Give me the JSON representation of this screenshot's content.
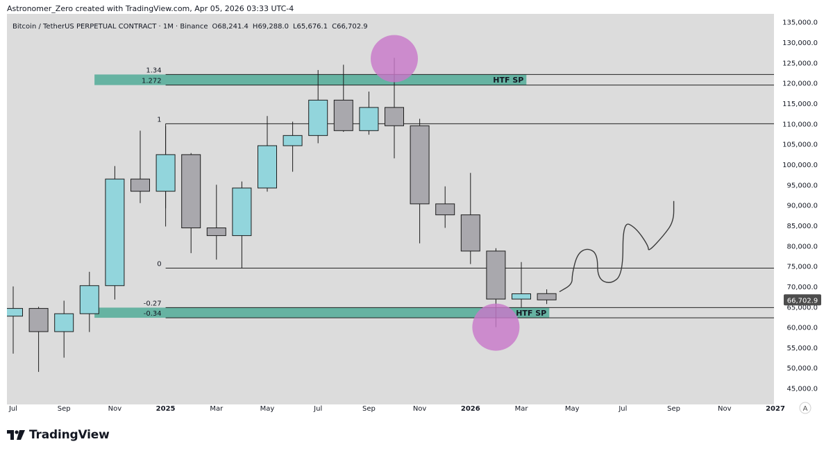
{
  "header": {
    "credit": "Astronomer_Zero created with TradingView.com, Apr 05, 2026 03:33 UTC-4"
  },
  "legend": {
    "symbol": "Bitcoin / TetherUS PERPETUAL CONTRACT · 1M · Binance",
    "o": "O68,241.4",
    "h": "H69,288.0",
    "l": "L65,676.1",
    "c": "C66,702.9"
  },
  "price_label": "66,702.9",
  "autoscale_label": "A",
  "logo_text": "TradingView",
  "colors": {
    "background": "#dcdcdc",
    "bull": "#92d5dc",
    "bear": "#a9a8ad",
    "zone": "#66b3a2",
    "circle": "#c879c9",
    "last_price_bg": "#4d4d4d"
  },
  "chart_data": {
    "type": "candlestick",
    "title": "Bitcoin / TetherUS PERPETUAL CONTRACT · 1M · Binance",
    "ylim": [
      41000,
      137000
    ],
    "y_ticks": [
      45000,
      50000,
      55000,
      60000,
      65000,
      70000,
      75000,
      80000,
      85000,
      90000,
      95000,
      100000,
      105000,
      110000,
      115000,
      120000,
      125000,
      130000,
      135000
    ],
    "y_tick_labels": [
      "45,000.0",
      "50,000.0",
      "55,000.0",
      "60,000.0",
      "65,000.0",
      "70,000.0",
      "75,000.0",
      "80,000.0",
      "85,000.0",
      "90,000.0",
      "95,000.0",
      "100,000.0",
      "105,000.0",
      "110,000.0",
      "115,000.0",
      "120,000.0",
      "125,000.0",
      "130,000.0",
      "135,000.0"
    ],
    "x_labels": [
      {
        "label": "Jul",
        "i": 0,
        "bold": false
      },
      {
        "label": "Sep",
        "i": 2,
        "bold": false
      },
      {
        "label": "Nov",
        "i": 4,
        "bold": false
      },
      {
        "label": "2025",
        "i": 6,
        "bold": true
      },
      {
        "label": "Mar",
        "i": 8,
        "bold": false
      },
      {
        "label": "May",
        "i": 10,
        "bold": false
      },
      {
        "label": "Jul",
        "i": 12,
        "bold": false
      },
      {
        "label": "Sep",
        "i": 14,
        "bold": false
      },
      {
        "label": "Nov",
        "i": 16,
        "bold": false
      },
      {
        "label": "2026",
        "i": 18,
        "bold": true
      },
      {
        "label": "Mar",
        "i": 20,
        "bold": false
      },
      {
        "label": "May",
        "i": 22,
        "bold": false
      },
      {
        "label": "Jul",
        "i": 24,
        "bold": false
      },
      {
        "label": "Sep",
        "i": 26,
        "bold": false
      },
      {
        "label": "Nov",
        "i": 28,
        "bold": false
      },
      {
        "label": "2027",
        "i": 30,
        "bold": true
      }
    ],
    "candles": [
      {
        "month": "Jul 2024",
        "o": 62700,
        "h": 70000,
        "l": 53500,
        "c": 64600
      },
      {
        "month": "Aug 2024",
        "o": 64600,
        "h": 65000,
        "l": 49000,
        "c": 58900
      },
      {
        "month": "Sep 2024",
        "o": 58900,
        "h": 66500,
        "l": 52500,
        "c": 63300
      },
      {
        "month": "Oct 2024",
        "o": 63300,
        "h": 73600,
        "l": 58800,
        "c": 70200
      },
      {
        "month": "Nov 2024",
        "o": 70200,
        "h": 99600,
        "l": 66800,
        "c": 96400
      },
      {
        "month": "Dec 2024",
        "o": 96400,
        "h": 108300,
        "l": 90500,
        "c": 93400
      },
      {
        "month": "Jan 2025",
        "o": 93400,
        "h": 109400,
        "l": 89200,
        "c": 102400
      },
      {
        "month": "Feb 2025",
        "o": 102400,
        "h": 102800,
        "l": 78200,
        "c": 84400
      },
      {
        "month": "Mar 2025",
        "o": 84400,
        "h": 95000,
        "l": 76600,
        "c": 82500
      },
      {
        "month": "Apr 2025",
        "o": 82500,
        "h": 95800,
        "l": 74500,
        "c": 94200
      },
      {
        "month": "May 2025",
        "o": 94200,
        "h": 111900,
        "l": 93300,
        "c": 104600
      },
      {
        "month": "Jun 2025",
        "o": 104600,
        "h": 110500,
        "l": 98200,
        "c": 107100
      },
      {
        "month": "Jul 2025",
        "o": 107100,
        "h": 123200,
        "l": 105200,
        "c": 115800
      },
      {
        "month": "Aug 2025",
        "o": 115800,
        "h": 124500,
        "l": 108000,
        "c": 108300
      },
      {
        "month": "Sep 2025",
        "o": 108300,
        "h": 117900,
        "l": 107300,
        "c": 114000
      },
      {
        "month": "Oct 2025",
        "o": 114000,
        "h": 126200,
        "l": 101500,
        "c": 109500
      },
      {
        "month": "Nov 2025",
        "o": 109500,
        "h": 111200,
        "l": 80600,
        "c": 90300
      },
      {
        "month": "Dec 2025",
        "o": 90300,
        "h": 94600,
        "l": 84400,
        "c": 87600
      },
      {
        "month": "Jan 2026",
        "o": 87600,
        "h": 97900,
        "l": 75500,
        "c": 78700
      },
      {
        "month": "Feb 2026",
        "o": 78700,
        "h": 79400,
        "l": 60000,
        "c": 66900
      },
      {
        "month": "Mar 2026",
        "o": 66900,
        "h": 76000,
        "l": 64900,
        "c": 68200
      },
      {
        "month": "Apr 2026",
        "o": 68241.4,
        "h": 69288.0,
        "l": 65676.1,
        "c": 66702.9
      }
    ],
    "fib_levels": [
      {
        "label": "1.34",
        "value": 122100
      },
      {
        "label": "1.272",
        "value": 119500
      },
      {
        "label": "1",
        "value": 110000
      },
      {
        "label": "0",
        "value": 74500
      },
      {
        "label": "-0.27",
        "value": 64800
      },
      {
        "label": "-0.34",
        "value": 62300
      }
    ],
    "zones": [
      {
        "label": "HTF SP",
        "from": 119500,
        "to": 122100,
        "start_i": 3.2,
        "end_i": 20.2
      },
      {
        "label": "HTF SP",
        "from": 62300,
        "to": 64800,
        "start_i": 3.2,
        "end_i": 21.1
      }
    ],
    "projection_path": [
      {
        "i": 21.5,
        "v": 68700
      },
      {
        "i": 22.0,
        "v": 70500
      },
      {
        "i": 22.0,
        "v": 73000
      },
      {
        "i": 22.2,
        "v": 78000
      },
      {
        "i": 22.6,
        "v": 79500
      },
      {
        "i": 23.0,
        "v": 78000
      },
      {
        "i": 23.0,
        "v": 72000
      },
      {
        "i": 23.5,
        "v": 70500
      },
      {
        "i": 24.0,
        "v": 73000
      },
      {
        "i": 24.0,
        "v": 86000
      },
      {
        "i": 24.5,
        "v": 84500
      },
      {
        "i": 25.0,
        "v": 80000
      },
      {
        "i": 25.0,
        "v": 78500
      },
      {
        "i": 25.6,
        "v": 82500
      },
      {
        "i": 26.0,
        "v": 86000
      },
      {
        "i": 26.0,
        "v": 91000
      }
    ],
    "highlight_circles": [
      {
        "i": 15,
        "v": 126000
      },
      {
        "i": 19,
        "v": 60000
      }
    ],
    "last_price": 66702.9
  }
}
